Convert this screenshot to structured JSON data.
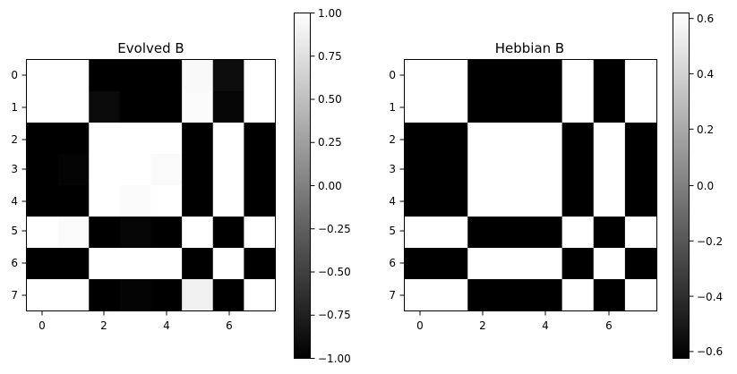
{
  "chart_data": [
    {
      "type": "heatmap",
      "title": "Evolved B",
      "colormap": "gray",
      "x_ticks": [
        "0",
        "2",
        "4",
        "6"
      ],
      "y_ticks": [
        "0",
        "1",
        "2",
        "3",
        "4",
        "5",
        "6",
        "7"
      ],
      "vmin": -1.0,
      "vmax": 1.0,
      "colorbar_ticks": [
        "1.00",
        "0.75",
        "0.50",
        "0.25",
        "0.00",
        "−0.25",
        "−0.50",
        "−0.75",
        "−1.00"
      ],
      "colorbar_values": [
        1.0,
        0.75,
        0.5,
        0.25,
        0.0,
        -0.25,
        -0.5,
        -0.75,
        -1.0
      ],
      "values": [
        [
          1.0,
          1.0,
          -1.0,
          -1.0,
          -1.0,
          0.95,
          -0.9,
          1.0
        ],
        [
          1.0,
          1.0,
          -0.92,
          -1.0,
          -1.0,
          0.97,
          -0.95,
          1.0
        ],
        [
          -1.0,
          -1.0,
          1.0,
          1.0,
          1.0,
          -1.0,
          1.0,
          -1.0
        ],
        [
          -1.0,
          -0.97,
          1.0,
          1.0,
          0.96,
          -1.0,
          1.0,
          -1.0
        ],
        [
          -1.0,
          -1.0,
          1.0,
          0.97,
          1.0,
          -1.0,
          1.0,
          -1.0
        ],
        [
          1.0,
          0.97,
          -1.0,
          -0.96,
          -1.0,
          1.0,
          -1.0,
          1.0
        ],
        [
          -1.0,
          -1.0,
          1.0,
          1.0,
          1.0,
          -1.0,
          1.0,
          -1.0
        ],
        [
          1.0,
          1.0,
          -1.0,
          -0.97,
          -1.0,
          0.88,
          -1.0,
          1.0
        ]
      ]
    },
    {
      "type": "heatmap",
      "title": "Hebbian B",
      "colormap": "gray",
      "x_ticks": [
        "0",
        "2",
        "4",
        "6"
      ],
      "y_ticks": [
        "0",
        "1",
        "2",
        "3",
        "4",
        "5",
        "6",
        "7"
      ],
      "vmin": -0.625,
      "vmax": 0.625,
      "colorbar_ticks": [
        "0.6",
        "0.4",
        "0.2",
        "0.0",
        "−0.2",
        "−0.4",
        "−0.6"
      ],
      "colorbar_values": [
        0.6,
        0.4,
        0.2,
        0.0,
        -0.2,
        -0.4,
        -0.6
      ],
      "values": [
        [
          0.625,
          0.625,
          -0.625,
          -0.625,
          -0.625,
          0.625,
          -0.625,
          0.625
        ],
        [
          0.625,
          0.625,
          -0.625,
          -0.625,
          -0.625,
          0.625,
          -0.625,
          0.625
        ],
        [
          -0.625,
          -0.625,
          0.625,
          0.625,
          0.625,
          -0.625,
          0.625,
          -0.625
        ],
        [
          -0.625,
          -0.625,
          0.625,
          0.625,
          0.625,
          -0.625,
          0.625,
          -0.625
        ],
        [
          -0.625,
          -0.625,
          0.625,
          0.625,
          0.625,
          -0.625,
          0.625,
          -0.625
        ],
        [
          0.625,
          0.625,
          -0.625,
          -0.625,
          -0.625,
          0.625,
          -0.625,
          0.625
        ],
        [
          -0.625,
          -0.625,
          0.625,
          0.625,
          0.625,
          -0.625,
          0.625,
          -0.625
        ],
        [
          0.625,
          0.625,
          -0.625,
          -0.625,
          -0.625,
          0.625,
          -0.625,
          0.625
        ]
      ]
    }
  ]
}
